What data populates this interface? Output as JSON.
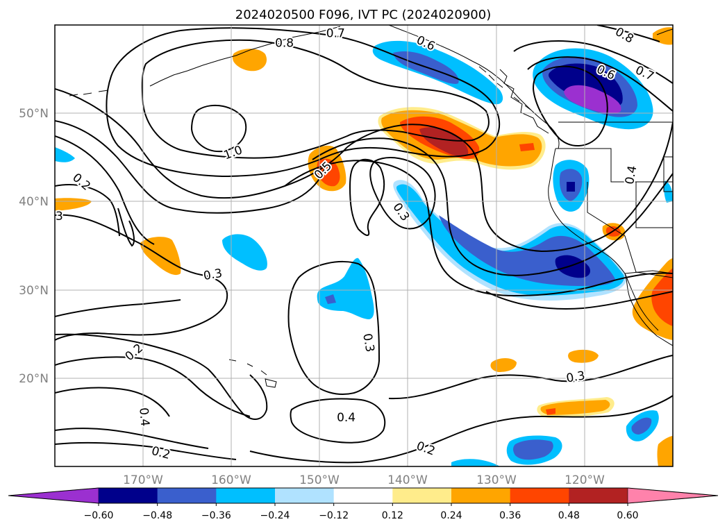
{
  "title": "2024020500 F096, IVT PC (2024020900)",
  "map": {
    "lon_range": [
      -180,
      -110
    ],
    "lat_range": [
      10,
      60
    ],
    "lon_ticks": [
      {
        "lon": -170,
        "label": "170°W"
      },
      {
        "lon": -160,
        "label": "160°W"
      },
      {
        "lon": -150,
        "label": "150°W"
      },
      {
        "lon": -140,
        "label": "140°W"
      },
      {
        "lon": -130,
        "label": "130°W"
      },
      {
        "lon": -120,
        "label": "120°W"
      }
    ],
    "lat_ticks": [
      {
        "lat": 20,
        "label": "20°N"
      },
      {
        "lat": 30,
        "label": "30°N"
      },
      {
        "lat": 40,
        "label": "40°N"
      },
      {
        "lat": 50,
        "label": "50°N"
      }
    ],
    "grid": true,
    "contour_labels": [
      {
        "text": "0.7",
        "lon": -148.2,
        "lat": 59.0,
        "rot": 0
      },
      {
        "text": "0.8",
        "lon": -154.0,
        "lat": 57.9,
        "rot": 0
      },
      {
        "text": "0.6",
        "lon": -138.0,
        "lat": 57.9,
        "rot": 25
      },
      {
        "text": "0.8",
        "lon": -115.5,
        "lat": 58.8,
        "rot": 30
      },
      {
        "text": "0.7",
        "lon": -113.2,
        "lat": 54.5,
        "rot": 25
      },
      {
        "text": "0.6",
        "lon": -117.6,
        "lat": 54.6,
        "rot": 25
      },
      {
        "text": "1.0",
        "lon": -159.8,
        "lat": 45.5,
        "rot": -20
      },
      {
        "text": "0.5",
        "lon": -149.6,
        "lat": 43.5,
        "rot": -45
      },
      {
        "text": "0.3",
        "lon": -140.8,
        "lat": 38.8,
        "rot": 55
      },
      {
        "text": "0.2",
        "lon": -177.0,
        "lat": 42.2,
        "rot": 40
      },
      {
        "text": "3",
        "lon": -179.5,
        "lat": 38.3,
        "rot": 0
      },
      {
        "text": "0.4",
        "lon": -114.7,
        "lat": 43.0,
        "rot": -80
      },
      {
        "text": "0.3",
        "lon": -162.1,
        "lat": 31.7,
        "rot": -10
      },
      {
        "text": "0.3",
        "lon": -144.5,
        "lat": 24.0,
        "rot": 80
      },
      {
        "text": "0.2",
        "lon": -171.0,
        "lat": 22.9,
        "rot": -40
      },
      {
        "text": "0.4",
        "lon": -169.9,
        "lat": 15.6,
        "rot": 85
      },
      {
        "text": "0.4",
        "lon": -147.0,
        "lat": 15.5,
        "rot": 0
      },
      {
        "text": "0.2",
        "lon": -168.0,
        "lat": 11.5,
        "rot": 15
      },
      {
        "text": "0.3",
        "lon": -121.0,
        "lat": 20.1,
        "rot": -10
      },
      {
        "text": "0.2",
        "lon": -138.0,
        "lat": 12.0,
        "rot": 20
      }
    ]
  },
  "colorbar": {
    "colors": [
      "#9b30d0",
      "#00008b",
      "#3a5fcd",
      "#00bfff",
      "#b0e2ff",
      "#ffffff",
      "#ffec8b",
      "#ffa500",
      "#ff4500",
      "#b22222",
      "#ff82ab"
    ],
    "tick_labels": [
      "−0.60",
      "−0.48",
      "−0.36",
      "−0.24",
      "−0.12",
      "0.12",
      "0.24",
      "0.36",
      "0.48",
      "0.60"
    ]
  }
}
